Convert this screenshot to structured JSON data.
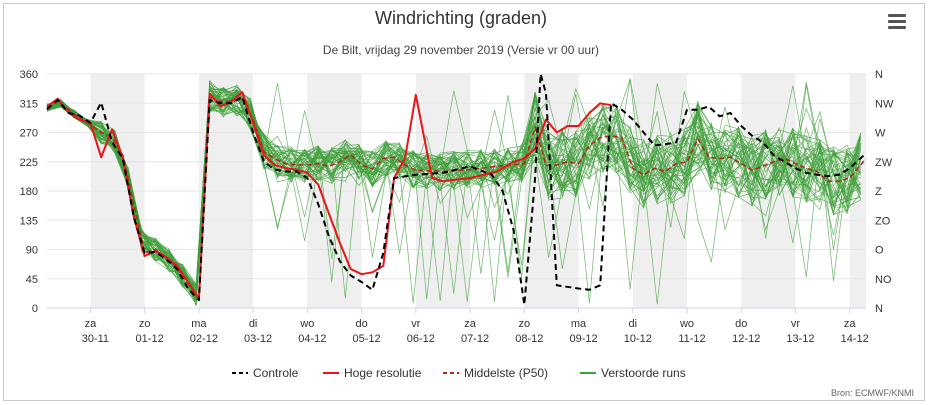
{
  "header": {
    "title": "Windrichting (graden)",
    "subtitle": "De Bilt, vrijdag 29 november 2019 (Versie vr 00 uur)"
  },
  "menu": {
    "icon": "hamburger-menu-icon"
  },
  "credits": "Bron: ECMWF/KNMI",
  "colors": {
    "controle": "#000000",
    "hoge_resolutie": "#e8141a",
    "middelste": "#b22a1f",
    "verstoorde": "#3f9f3a",
    "weekend_band": "#efefef",
    "grid": "#e6e6e6"
  },
  "chart_data": {
    "type": "line",
    "title": "Windrichting (graden)",
    "subtitle": "De Bilt, vrijdag 29 november 2019 (Versie vr 00 uur)",
    "ylim": [
      0,
      360
    ],
    "y_ticks_left": [
      "0",
      "45",
      "90",
      "135",
      "180",
      "225",
      "270",
      "315",
      "360"
    ],
    "y_ticks_right": [
      "N",
      "NO",
      "O",
      "ZO",
      "Z",
      "ZW",
      "W",
      "NW",
      "N"
    ],
    "x_range_days": [
      -0.8,
      14.3
    ],
    "x_ticks": [
      {
        "day": "za",
        "date": "30-11"
      },
      {
        "day": "zo",
        "date": "01-12"
      },
      {
        "day": "ma",
        "date": "02-12"
      },
      {
        "day": "di",
        "date": "03-12"
      },
      {
        "day": "wo",
        "date": "04-12"
      },
      {
        "day": "do",
        "date": "05-12"
      },
      {
        "day": "vr",
        "date": "06-12"
      },
      {
        "day": "za",
        "date": "07-12"
      },
      {
        "day": "zo",
        "date": "08-12"
      },
      {
        "day": "ma",
        "date": "09-12"
      },
      {
        "day": "di",
        "date": "10-12"
      },
      {
        "day": "wo",
        "date": "11-12"
      },
      {
        "day": "do",
        "date": "12-12"
      },
      {
        "day": "vr",
        "date": "13-12"
      },
      {
        "day": "za",
        "date": "14-12"
      }
    ],
    "shaded_bands": [
      [
        0,
        1
      ],
      [
        2,
        3
      ],
      [
        4,
        5
      ],
      [
        6,
        7
      ],
      [
        8,
        9
      ],
      [
        10,
        11
      ],
      [
        12,
        13
      ],
      [
        14,
        14.3
      ]
    ],
    "legend_position": "bottom-center",
    "series": [
      {
        "name": "Controle",
        "style": "dashed",
        "points": [
          [
            -0.8,
            306
          ],
          [
            -0.6,
            320
          ],
          [
            -0.4,
            300
          ],
          [
            -0.2,
            296
          ],
          [
            0,
            285
          ],
          [
            0.2,
            316
          ],
          [
            0.4,
            255
          ],
          [
            0.6,
            230
          ],
          [
            0.8,
            140
          ],
          [
            1,
            85
          ],
          [
            1.2,
            86
          ],
          [
            1.4,
            75
          ],
          [
            1.6,
            60
          ],
          [
            1.8,
            30
          ],
          [
            2,
            12
          ],
          [
            2.2,
            320
          ],
          [
            2.4,
            315
          ],
          [
            2.6,
            315
          ],
          [
            2.8,
            325
          ],
          [
            3,
            270
          ],
          [
            3.2,
            225
          ],
          [
            3.4,
            213
          ],
          [
            3.6,
            210
          ],
          [
            3.8,
            210
          ],
          [
            4,
            200
          ],
          [
            4.2,
            160
          ],
          [
            4.4,
            110
          ],
          [
            4.6,
            72
          ],
          [
            4.8,
            50
          ],
          [
            5,
            40
          ],
          [
            5.2,
            28
          ],
          [
            5.4,
            85
          ],
          [
            5.6,
            200
          ],
          [
            6,
            205
          ],
          [
            6.5,
            208
          ],
          [
            7,
            218
          ],
          [
            7.4,
            205
          ],
          [
            7.6,
            180
          ],
          [
            7.8,
            120
          ],
          [
            8,
            5
          ],
          [
            8.2,
            200
          ],
          [
            8.3,
            360
          ],
          [
            8.4,
            330
          ],
          [
            8.6,
            35
          ],
          [
            9,
            30
          ],
          [
            9.2,
            28
          ],
          [
            9.4,
            35
          ],
          [
            9.6,
            315
          ],
          [
            9.8,
            305
          ],
          [
            10,
            290
          ],
          [
            10.2,
            270
          ],
          [
            10.4,
            250
          ],
          [
            10.6,
            252
          ],
          [
            10.8,
            255
          ],
          [
            11,
            305
          ],
          [
            11.2,
            305
          ],
          [
            11.4,
            310
          ],
          [
            11.6,
            295
          ],
          [
            11.8,
            300
          ],
          [
            12,
            280
          ],
          [
            12.2,
            265
          ],
          [
            12.4,
            255
          ],
          [
            12.6,
            235
          ],
          [
            12.8,
            225
          ],
          [
            13,
            215
          ],
          [
            13.2,
            208
          ],
          [
            13.4,
            205
          ],
          [
            13.6,
            203
          ],
          [
            13.8,
            205
          ],
          [
            14,
            215
          ],
          [
            14.3,
            238
          ]
        ]
      },
      {
        "name": "Hoge resolutie",
        "style": "solid",
        "points": [
          [
            -0.8,
            310
          ],
          [
            -0.6,
            322
          ],
          [
            -0.4,
            300
          ],
          [
            -0.2,
            290
          ],
          [
            0,
            285
          ],
          [
            0.2,
            232
          ],
          [
            0.4,
            275
          ],
          [
            0.6,
            230
          ],
          [
            0.8,
            140
          ],
          [
            1,
            80
          ],
          [
            1.2,
            88
          ],
          [
            1.4,
            78
          ],
          [
            1.6,
            65
          ],
          [
            1.8,
            40
          ],
          [
            2,
            15
          ],
          [
            2.2,
            330
          ],
          [
            2.4,
            310
          ],
          [
            2.6,
            318
          ],
          [
            2.8,
            332
          ],
          [
            3,
            285
          ],
          [
            3.2,
            235
          ],
          [
            3.4,
            220
          ],
          [
            3.6,
            215
          ],
          [
            3.8,
            213
          ],
          [
            4,
            208
          ],
          [
            4.2,
            190
          ],
          [
            4.4,
            145
          ],
          [
            4.6,
            100
          ],
          [
            4.8,
            60
          ],
          [
            5,
            52
          ],
          [
            5.2,
            55
          ],
          [
            5.4,
            65
          ],
          [
            5.6,
            200
          ],
          [
            5.8,
            230
          ],
          [
            6,
            328
          ],
          [
            6.3,
            200
          ],
          [
            6.5,
            195
          ],
          [
            7,
            200
          ],
          [
            7.5,
            210
          ],
          [
            7.8,
            225
          ],
          [
            8,
            230
          ],
          [
            8.2,
            245
          ],
          [
            8.4,
            290
          ],
          [
            8.6,
            270
          ],
          [
            8.8,
            280
          ],
          [
            9,
            280
          ],
          [
            9.2,
            300
          ],
          [
            9.4,
            315
          ],
          [
            9.6,
            312
          ]
        ]
      },
      {
        "name": "Middelste (P50)",
        "style": "dashed",
        "points": [
          [
            -0.8,
            308
          ],
          [
            -0.6,
            318
          ],
          [
            -0.4,
            305
          ],
          [
            -0.2,
            292
          ],
          [
            0,
            282
          ],
          [
            0.2,
            270
          ],
          [
            0.4,
            262
          ],
          [
            0.6,
            235
          ],
          [
            0.8,
            160
          ],
          [
            1,
            85
          ],
          [
            1.2,
            90
          ],
          [
            1.4,
            78
          ],
          [
            1.6,
            62
          ],
          [
            1.8,
            38
          ],
          [
            2,
            14
          ],
          [
            2.2,
            325
          ],
          [
            2.4,
            318
          ],
          [
            2.6,
            318
          ],
          [
            2.8,
            322
          ],
          [
            3,
            290
          ],
          [
            3.2,
            240
          ],
          [
            3.4,
            230
          ],
          [
            3.6,
            222
          ],
          [
            3.8,
            220
          ],
          [
            4,
            220
          ],
          [
            4.2,
            222
          ],
          [
            4.4,
            218
          ],
          [
            4.6,
            225
          ],
          [
            4.8,
            236
          ],
          [
            5,
            220
          ],
          [
            5.2,
            214
          ],
          [
            5.4,
            230
          ],
          [
            5.6,
            232
          ],
          [
            5.8,
            220
          ],
          [
            6,
            212
          ],
          [
            6.5,
            210
          ],
          [
            7,
            213
          ],
          [
            7.5,
            218
          ],
          [
            8,
            222
          ],
          [
            8.2,
            278
          ],
          [
            8.4,
            220
          ],
          [
            8.6,
            220
          ],
          [
            8.8,
            225
          ],
          [
            9,
            222
          ],
          [
            9.2,
            250
          ],
          [
            9.4,
            262
          ],
          [
            9.6,
            265
          ],
          [
            9.8,
            262
          ],
          [
            10,
            215
          ],
          [
            10.2,
            205
          ],
          [
            10.4,
            215
          ],
          [
            10.6,
            210
          ],
          [
            10.8,
            222
          ],
          [
            11,
            225
          ],
          [
            11.2,
            260
          ],
          [
            11.4,
            232
          ],
          [
            11.6,
            230
          ],
          [
            11.8,
            232
          ],
          [
            12,
            222
          ],
          [
            12.2,
            212
          ],
          [
            12.4,
            218
          ],
          [
            12.6,
            225
          ],
          [
            12.8,
            230
          ],
          [
            13,
            222
          ],
          [
            13.2,
            215
          ],
          [
            13.4,
            210
          ],
          [
            13.6,
            195
          ],
          [
            13.8,
            195
          ],
          [
            14,
            200
          ],
          [
            14.3,
            230
          ]
        ]
      },
      {
        "name": "Verstoorde runs",
        "style": "solid"
      }
    ]
  }
}
